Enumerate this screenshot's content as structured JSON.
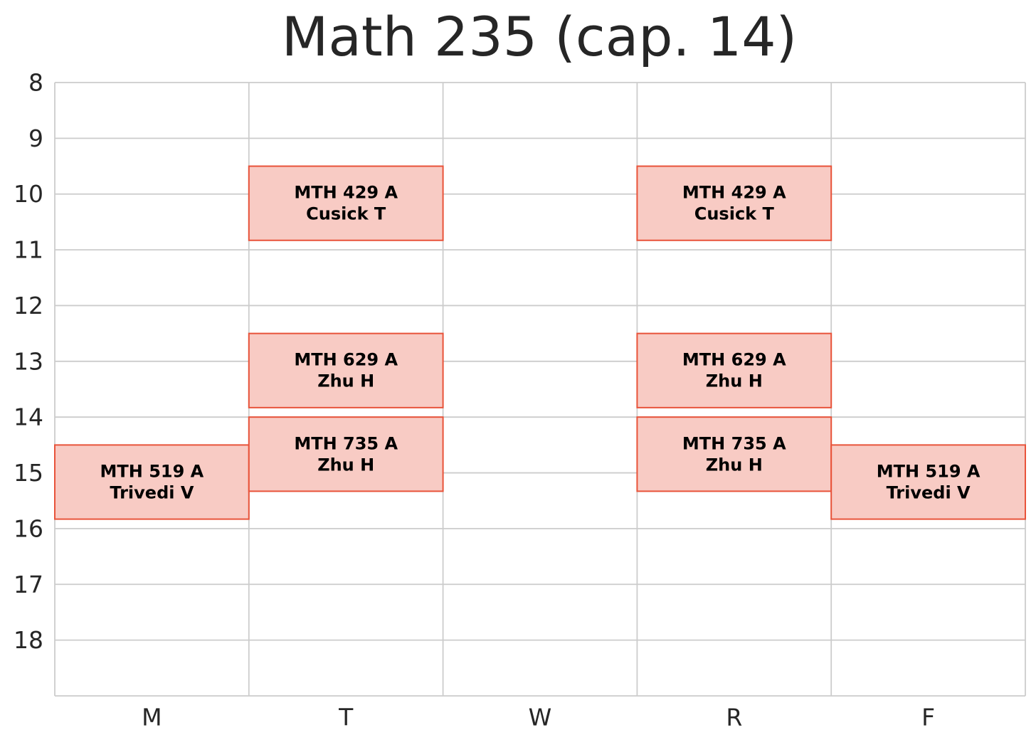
{
  "chart_data": {
    "type": "timetable",
    "title": "Math 235 (cap. 14)",
    "days": [
      "M",
      "T",
      "W",
      "R",
      "F"
    ],
    "y_ticks": [
      8,
      9,
      10,
      11,
      12,
      13,
      14,
      15,
      16,
      17,
      18
    ],
    "ylim": [
      19,
      8
    ],
    "grid": true,
    "colors": {
      "block_fill": "#f8cbc4",
      "block_edge": "#e8533a",
      "grid": "#cccccc",
      "text": "#262626"
    },
    "blocks": [
      {
        "day": "M",
        "start": 14.5,
        "end": 15.83,
        "course": "MTH 519 A",
        "instructor": "Trivedi V"
      },
      {
        "day": "T",
        "start": 9.5,
        "end": 10.83,
        "course": "MTH 429 A",
        "instructor": "Cusick T"
      },
      {
        "day": "T",
        "start": 12.5,
        "end": 13.83,
        "course": "MTH 629 A",
        "instructor": "Zhu H"
      },
      {
        "day": "T",
        "start": 14.0,
        "end": 15.33,
        "course": "MTH 735 A",
        "instructor": "Zhu H"
      },
      {
        "day": "R",
        "start": 9.5,
        "end": 10.83,
        "course": "MTH 429 A",
        "instructor": "Cusick T"
      },
      {
        "day": "R",
        "start": 12.5,
        "end": 13.83,
        "course": "MTH 629 A",
        "instructor": "Zhu H"
      },
      {
        "day": "R",
        "start": 14.0,
        "end": 15.33,
        "course": "MTH 735 A",
        "instructor": "Zhu H"
      },
      {
        "day": "F",
        "start": 14.5,
        "end": 15.83,
        "course": "MTH 519 A",
        "instructor": "Trivedi V"
      }
    ]
  }
}
